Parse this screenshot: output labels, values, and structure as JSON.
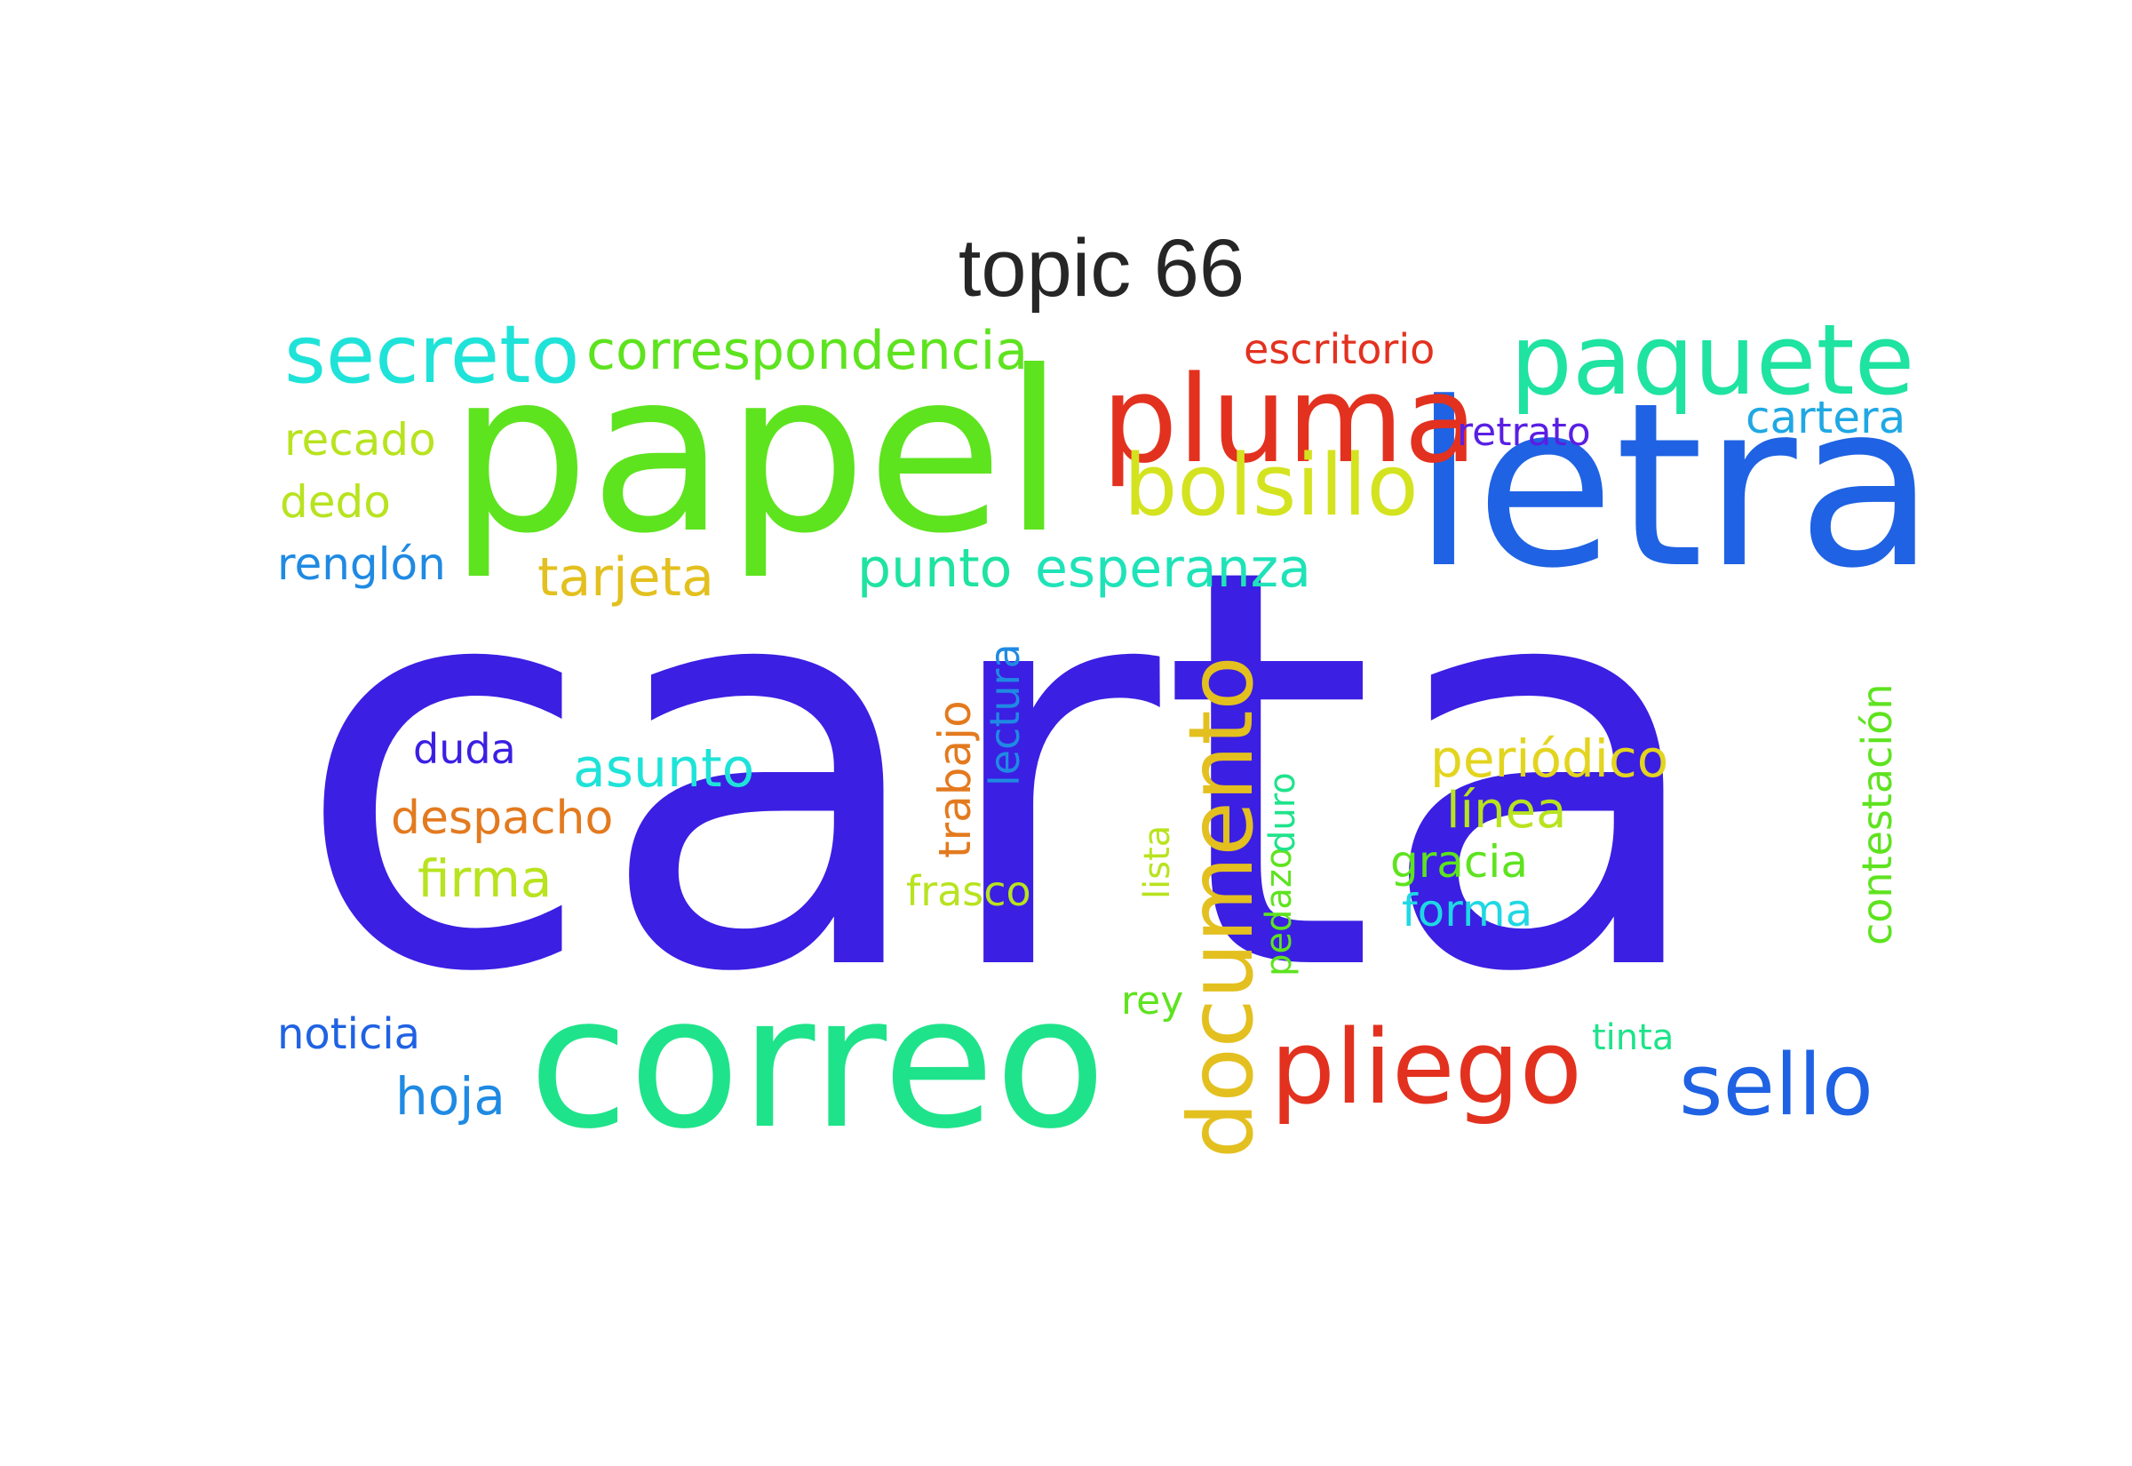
{
  "title": "topic 66",
  "words": [
    {
      "text": "carta",
      "color": "#3b1fe3"
    },
    {
      "text": "papel",
      "color": "#5ee31f"
    },
    {
      "text": "letra",
      "color": "#1f62e3"
    },
    {
      "text": "correo",
      "color": "#1fe38a"
    },
    {
      "text": "pluma",
      "color": "#e3311f"
    },
    {
      "text": "paquete",
      "color": "#1fe3a0"
    },
    {
      "text": "secreto",
      "color": "#1fe3d8"
    },
    {
      "text": "bolsillo",
      "color": "#d4e31f"
    },
    {
      "text": "pliego",
      "color": "#e3311f"
    },
    {
      "text": "sello",
      "color": "#1f62e3"
    },
    {
      "text": "documento",
      "color": "#e3c01f"
    },
    {
      "text": "correspondencia",
      "color": "#5ee31f"
    },
    {
      "text": "escritorio",
      "color": "#e3311f"
    },
    {
      "text": "retrato",
      "color": "#5a1fe3"
    },
    {
      "text": "cartera",
      "color": "#1fa8e3"
    },
    {
      "text": "recado",
      "color": "#b8e31f"
    },
    {
      "text": "dedo",
      "color": "#b8e31f"
    },
    {
      "text": "renglón",
      "color": "#1f8ae3"
    },
    {
      "text": "tarjeta",
      "color": "#e3c01f"
    },
    {
      "text": "punto",
      "color": "#1fe3a0"
    },
    {
      "text": "esperanza",
      "color": "#1fe3b8"
    },
    {
      "text": "lectura",
      "color": "#1f8ae3"
    },
    {
      "text": "trabajo",
      "color": "#e37a1f"
    },
    {
      "text": "duda",
      "color": "#3b1fe3"
    },
    {
      "text": "asunto",
      "color": "#1fe3d8"
    },
    {
      "text": "despacho",
      "color": "#e37a1f"
    },
    {
      "text": "firma",
      "color": "#b8e31f"
    },
    {
      "text": "frasco",
      "color": "#b8e31f"
    },
    {
      "text": "lista",
      "color": "#b8e31f"
    },
    {
      "text": "pedazo",
      "color": "#5ee31f"
    },
    {
      "text": "duro",
      "color": "#1fe38a"
    },
    {
      "text": "periódico",
      "color": "#e3d41f"
    },
    {
      "text": "línea",
      "color": "#b8e31f"
    },
    {
      "text": "gracia",
      "color": "#5ee31f"
    },
    {
      "text": "forma",
      "color": "#1fd8e3"
    },
    {
      "text": "contestación",
      "color": "#5ee31f"
    },
    {
      "text": "rey",
      "color": "#5ee31f"
    },
    {
      "text": "tinta",
      "color": "#1fe38a"
    },
    {
      "text": "noticia",
      "color": "#1f62e3"
    },
    {
      "text": "hoja",
      "color": "#1f8ae3"
    }
  ]
}
